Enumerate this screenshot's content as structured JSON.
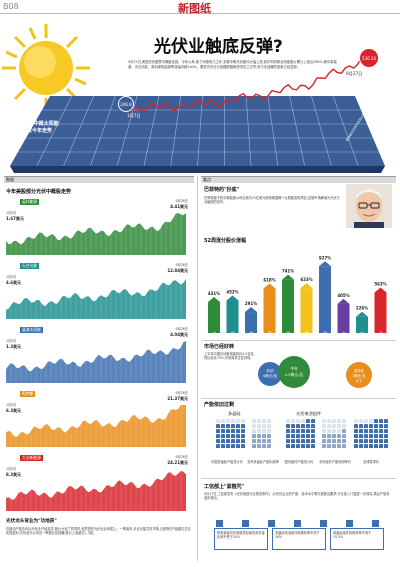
{
  "page_label": "B08",
  "masthead": "新图纸",
  "headline": "光伏业触底反弹?",
  "intro_text": "9月25日,美国光伏股票中概股走强。今年以来,除了尚德电力之外,多数中概光伏股均大幅上涨,其中阿特斯太阳能股价累计上涨近380%,韩华新能源、天合光能、英利绿色能源等涨幅均超200%。要说光伏业已经摆脱困局恐怕言之过早,但行业回暖的迹象已经显现。",
  "hero": {
    "start_value": "246.8",
    "start_date": "1月7日",
    "end_value": "536.56",
    "end_date": "9月27日",
    "index_title_line1": "i美股中概太阳能",
    "index_title_line2": "指数今年走势",
    "panel_tag": "投资者对光伏行业信心恢复"
  },
  "colors": {
    "sun": "#f5c21b",
    "panel": "#3b5e97",
    "headline": "#0c0c0c",
    "trend": "#d9242b",
    "green": "#2f8a3a",
    "teal": "#1f8f8f",
    "blue": "#3d6fb0",
    "purple": "#6a3ea0",
    "orange": "#e98e1a",
    "red": "#d8262b"
  },
  "left_header": "数据",
  "left_title": "今年美股部分光伏中概股走势",
  "stocks": [
    {
      "name": "英利能源",
      "start_date": "1月2日",
      "start_value": "1.67美元",
      "end_date": "9月26日",
      "end_value": "4.41美元",
      "color": "#2f8a3a"
    },
    {
      "name": "天合光能",
      "start_date": "1月2日",
      "start_value": "4.6美元",
      "end_date": "9月26日",
      "end_value": "12.84美元",
      "color": "#1f8f8f"
    },
    {
      "name": "晶澳太阳能",
      "start_date": "1月2日",
      "start_value": "1.3美元",
      "end_date": "9月26日",
      "end_value": "4.04美元",
      "color": "#3d6fb0"
    },
    {
      "name": "阿特斯",
      "start_date": "1月2日",
      "start_value": "6.3美元",
      "end_date": "9月26日",
      "end_value": "21.37美元",
      "color": "#e98e1a"
    },
    {
      "name": "大全新能源",
      "start_date": "1月2日",
      "start_value": "8.3美元",
      "end_date": "9月26日",
      "end_value": "24.21美元",
      "color": "#d8262b"
    }
  ],
  "left_footer_title": "光伏龙头背业为\"功地获\"",
  "left_footer_text": "在被动产能去化后光伏业开始复苏,股价大涨了的同时,依然是在光伏业后来居上。一季度末,天合光能共在市场上回购的产品超过过去实现盈利,光伏龙头公司近一季度业绩回暖,股价上涨超过1.3倍。",
  "right_header": "看点",
  "buffett": {
    "title": "巴菲特的\"抄底\"",
    "text": "巴菲特旗下的中美能源公司出资约25亿美元收购美国两个太阳能发电项目,这被市场解读为光伏行业触底的信号。"
  },
  "index_title": "52周涨分股价涨幅",
  "index_bars": [
    {
      "label": "英利绿色",
      "value": "431%",
      "pct": 431,
      "color": "#2f8a3a"
    },
    {
      "label": "天合光能",
      "value": "452%",
      "pct": 452,
      "color": "#1f8f8f"
    },
    {
      "label": "晶澳太阳能",
      "value": "291%",
      "pct": 291,
      "color": "#3d6fb0"
    },
    {
      "label": "韩华新能源",
      "value": "618%",
      "pct": 618,
      "color": "#e98e1a"
    },
    {
      "label": "阿特斯太阳能",
      "value": "741%",
      "pct": 741,
      "color": "#2f8a3a"
    },
    {
      "label": "晶科能源",
      "value": "623%",
      "pct": 623,
      "color": "#f5c21b"
    },
    {
      "label": "大全新能源",
      "value": "927%",
      "pct": 927,
      "color": "#3d6fb0"
    },
    {
      "label": "昱辉阳光",
      "value": "405%",
      "pct": 405,
      "color": "#6a3ea0"
    },
    {
      "label": "中电光伏",
      "value": "226%",
      "pct": 226,
      "color": "#1f8f8f"
    },
    {
      "label": "尚德电力",
      "value": "563%",
      "pct": 563,
      "color": "#d8262b"
    }
  ],
  "market": {
    "title": "市场已经好转",
    "text": "上半年中国光伏新增装机约4.5吉瓦,同比增长70%,市场需求正在好转。",
    "circle_a": "年初\n4美元/瓦",
    "circle_b": "今年\n4.5美元/瓦",
    "circle_c": "成本在\n3美元/瓦\n以下"
  },
  "capacity": {
    "title": "产能依旧过剩",
    "label_left": "多晶硅",
    "label_right": "光伏电池组件",
    "notes": [
      "中国多晶硅产能总计约",
      "去年多晶硅产能利用率",
      "国内组件产能总计约",
      "去年组件产能利用率约",
      "全球需求约"
    ]
  },
  "policy": {
    "title": "工信部上\"紧箍咒\"",
    "text": "9月17日,工信部发布《光伏制造行业规范条件》,对光伏企业的产能、技术水平等方面提出要求,行业准入门槛进一步提高,落后产能将逐步退出。",
    "boxes": [
      "现有新建光伏制造项目最低资本金比例不低于20%",
      "多晶硅电池组件转换效率不低于16%",
      "单晶硅组件转换效率不低于15.5%"
    ]
  }
}
